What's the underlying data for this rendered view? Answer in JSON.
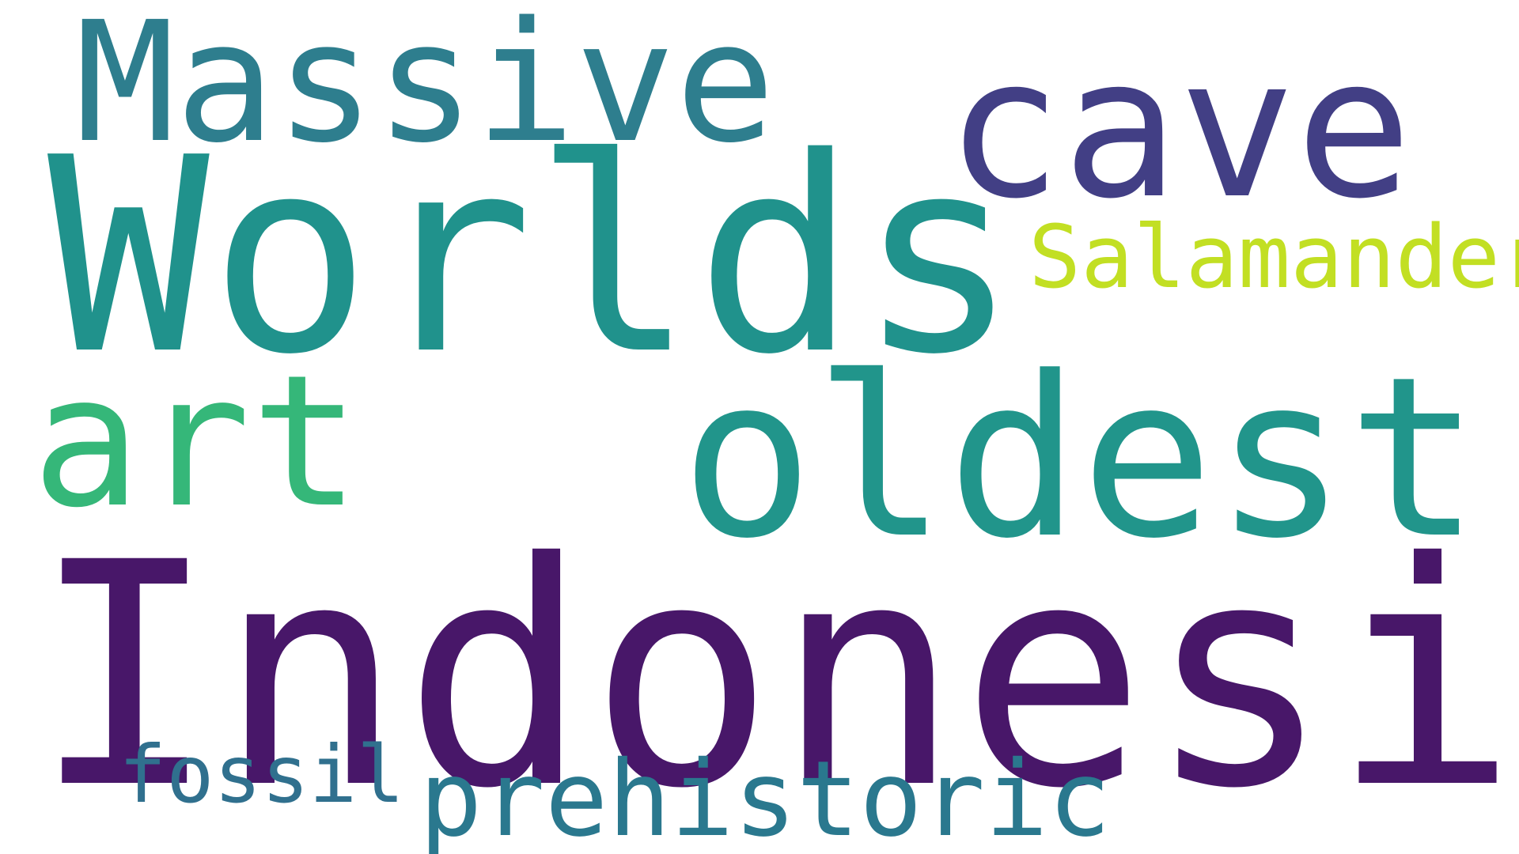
{
  "words": [
    {
      "key": "indonesia",
      "text": "Indonesia",
      "color": "#481769"
    },
    {
      "key": "worlds",
      "text": "Worlds",
      "color": "#20928c"
    },
    {
      "key": "oldest",
      "text": "oldest",
      "color": "#21958b"
    },
    {
      "key": "massive",
      "text": "Massive",
      "color": "#2e7e8e"
    },
    {
      "key": "cave",
      "text": "cave",
      "color": "#423f85"
    },
    {
      "key": "art",
      "text": "art",
      "color": "#35b779"
    },
    {
      "key": "salamander",
      "text": "Salamander",
      "color": "#c2df23"
    },
    {
      "key": "fossil",
      "text": "fossil",
      "color": "#30708e"
    },
    {
      "key": "prehistoric",
      "text": "prehistoric",
      "color": "#2a788e"
    }
  ]
}
